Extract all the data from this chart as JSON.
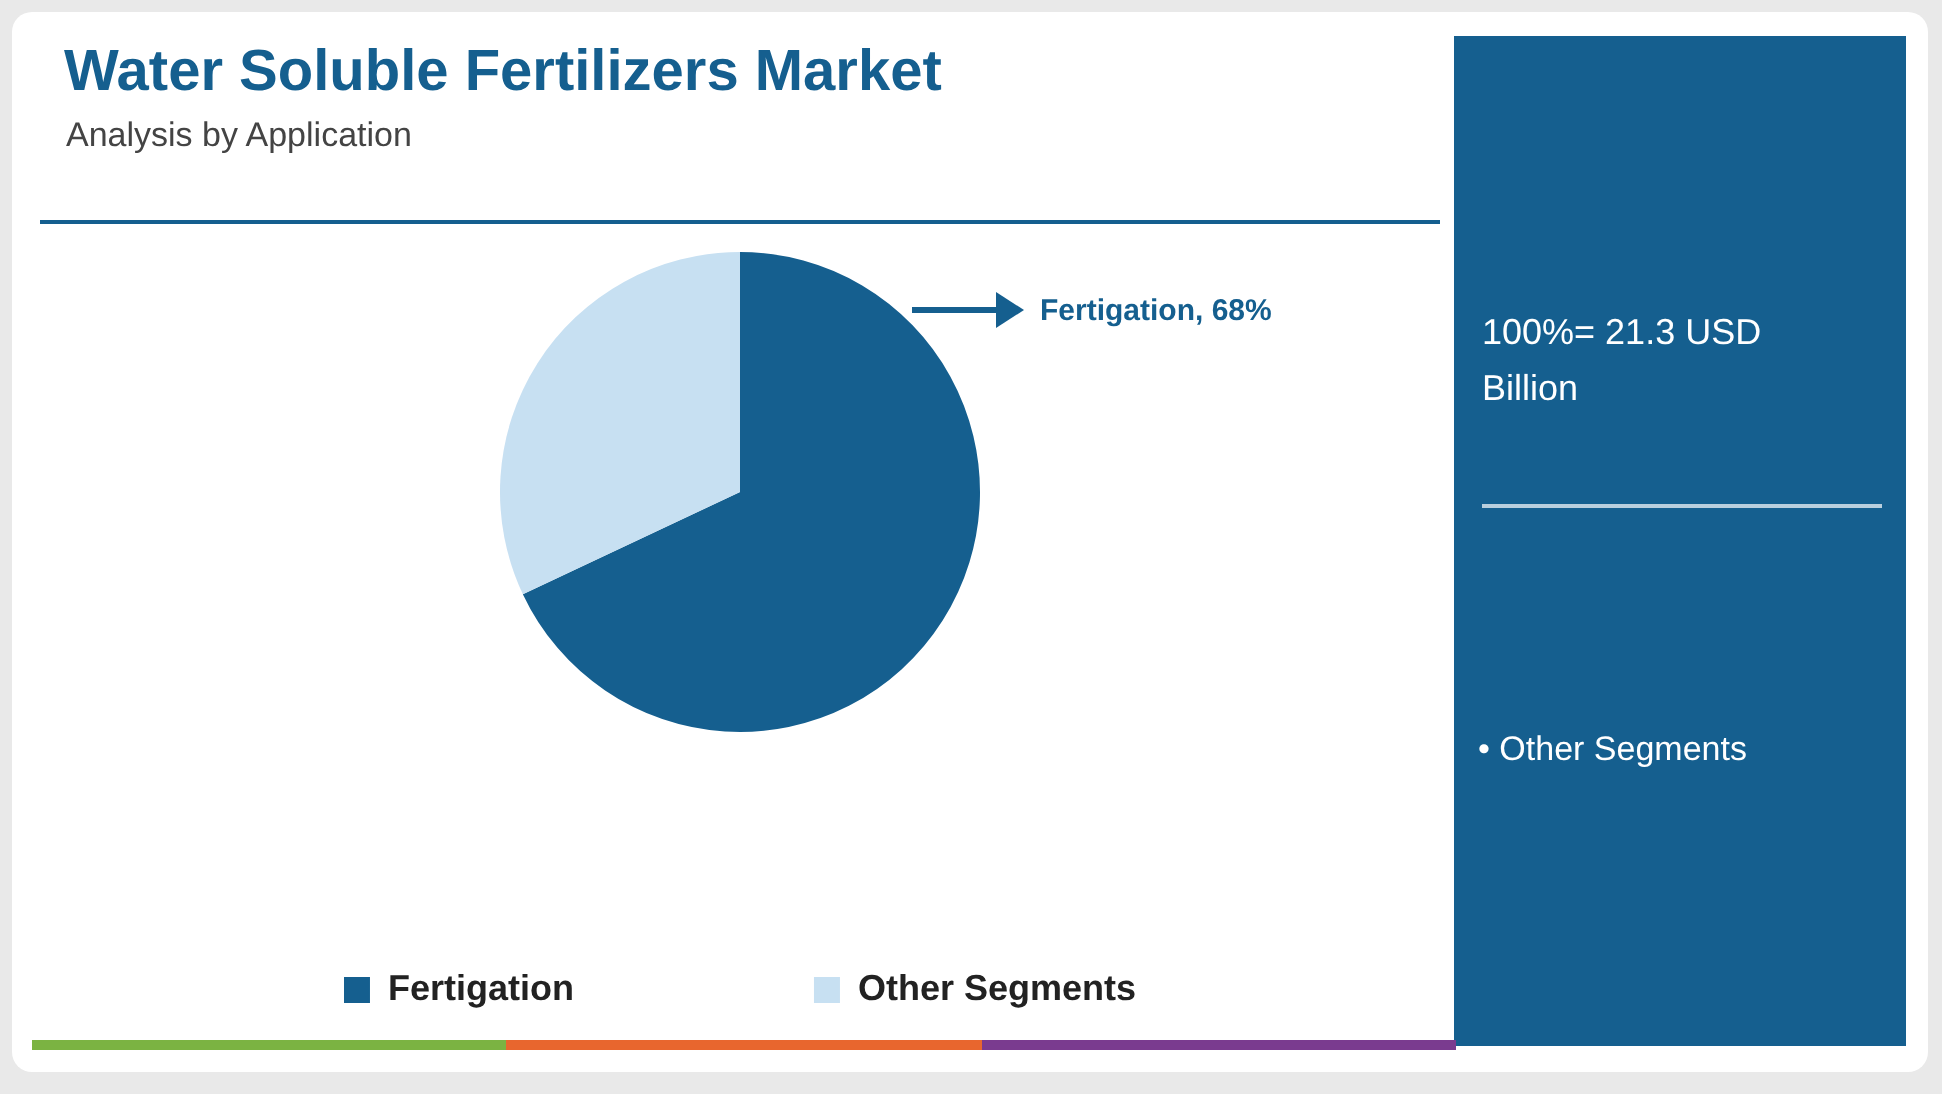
{
  "chart_data": {
    "type": "pie",
    "title": "Water Soluble Fertilizers Market",
    "subtitle": "Analysis by Application",
    "categories": [
      "Fertigation",
      "Other Segments"
    ],
    "values": [
      68,
      32
    ],
    "colors": [
      "#155f8f",
      "#c7e0f2"
    ],
    "value_labels": [
      "Fertigation, 68%",
      null
    ],
    "legend": "bottom",
    "annotations": [
      "100%= 21.3 USD Billion",
      "• Other Segments"
    ]
  }
}
